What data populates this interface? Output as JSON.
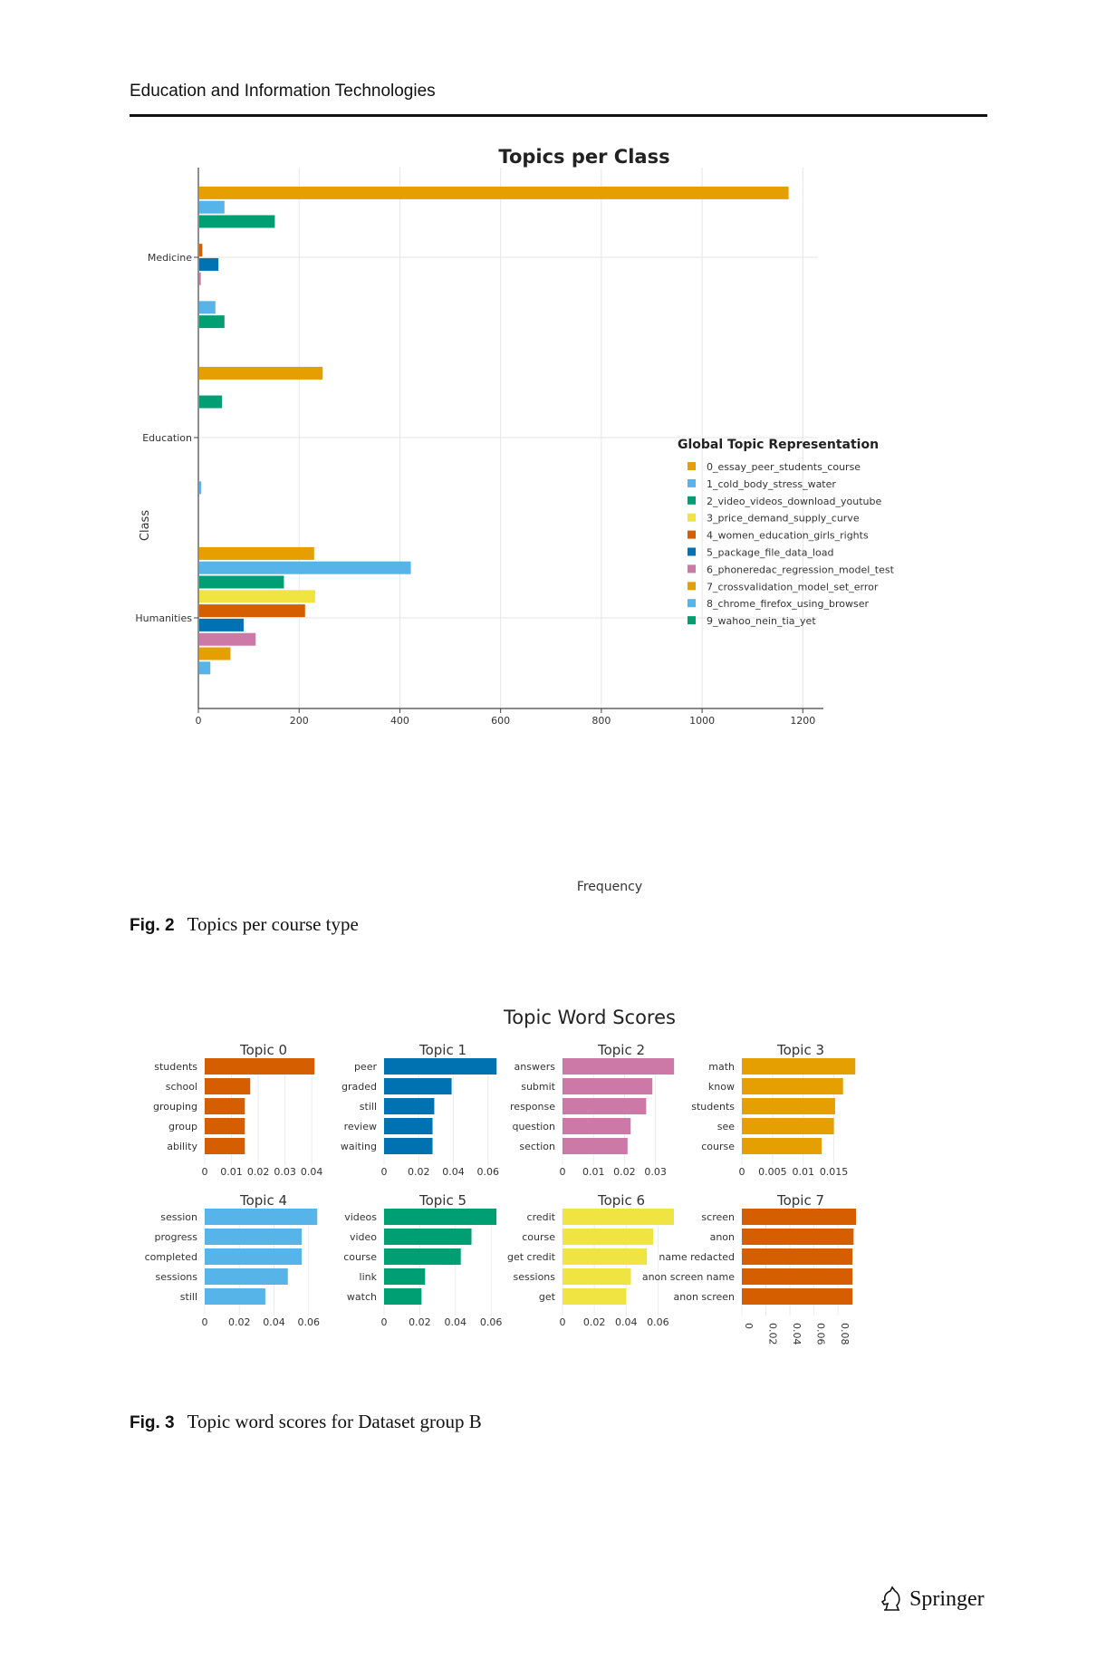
{
  "page": {
    "journal": "Education and Information Technologies",
    "publisher": "Springer"
  },
  "fig2": {
    "caption_label": "Fig. 2",
    "caption_text": "Topics per course type"
  },
  "fig3": {
    "caption_label": "Fig. 3",
    "caption_text": "Topic word scores for Dataset group B"
  },
  "chart_data": [
    {
      "type": "bar",
      "orientation": "horizontal",
      "title": "Topics per Class",
      "xlabel": "Frequency",
      "ylabel": "Class",
      "xlim": [
        0,
        1230
      ],
      "xticks": [
        0,
        200,
        400,
        600,
        800,
        1000,
        1200
      ],
      "categories": [
        "Medicine",
        "Education",
        "Humanities"
      ],
      "legend_title": "Global Topic Representation",
      "legend_position": "right",
      "grid": true,
      "series": [
        {
          "name": "0_essay_peer_students_course",
          "color": "#E69F00",
          "values": [
            1170,
            245,
            228
          ]
        },
        {
          "name": "1_cold_body_stress_water",
          "color": "#56B4E9",
          "values": [
            50,
            0,
            420
          ]
        },
        {
          "name": "2_video_videos_download_youtube",
          "color": "#009E73",
          "values": [
            150,
            45,
            168
          ]
        },
        {
          "name": "3_price_demand_supply_curve",
          "color": "#F0E442",
          "values": [
            0,
            0,
            230
          ]
        },
        {
          "name": "4_women_education_girls_rights",
          "color": "#D55E00",
          "values": [
            6,
            0,
            210
          ]
        },
        {
          "name": "5_package_file_data_load",
          "color": "#0072B2",
          "values": [
            38,
            0,
            88
          ]
        },
        {
          "name": "6_phoneredac_regression_model_test",
          "color": "#CC79A7",
          "values": [
            3,
            0,
            112
          ]
        },
        {
          "name": "7_crossvalidation_model_set_error",
          "color": "#E69F00",
          "values": [
            0,
            0,
            62
          ]
        },
        {
          "name": "8_chrome_firefox_using_browser",
          "color": "#56B4E9",
          "values": [
            32,
            4,
            22
          ]
        },
        {
          "name": "9_wahoo_nein_tia_yet",
          "color": "#009E73",
          "values": [
            50,
            0,
            0
          ]
        }
      ]
    },
    {
      "type": "bar",
      "orientation": "horizontal",
      "title": "Topic Word Scores",
      "grid": true,
      "subplots": [
        {
          "title": "Topic 0",
          "color": "#D55E00",
          "words": [
            "students",
            "school",
            "grouping",
            "group",
            "ability"
          ],
          "values": [
            0.041,
            0.017,
            0.015,
            0.015,
            0.015
          ],
          "xmax": 0.044,
          "xticks": [
            0,
            0.01,
            0.02,
            0.03,
            0.04
          ],
          "xtick_labels": [
            "0",
            "0.01",
            "0.02",
            "0.03",
            "0.04"
          ]
        },
        {
          "title": "Topic 1",
          "color": "#0072B2",
          "words": [
            "peer",
            "graded",
            "still",
            "review",
            "waiting"
          ],
          "values": [
            0.065,
            0.039,
            0.029,
            0.028,
            0.028
          ],
          "xmax": 0.068,
          "xticks": [
            0,
            0.02,
            0.04,
            0.06
          ],
          "xtick_labels": [
            "0",
            "0.02",
            "0.04",
            "0.06"
          ]
        },
        {
          "title": "Topic 2",
          "color": "#CC79A7",
          "words": [
            "answers",
            "submit",
            "response",
            "question",
            "section"
          ],
          "values": [
            0.036,
            0.029,
            0.027,
            0.022,
            0.021
          ],
          "xmax": 0.038,
          "xticks": [
            0,
            0.01,
            0.02,
            0.03
          ],
          "xtick_labels": [
            "0",
            "0.01",
            "0.02",
            "0.03"
          ]
        },
        {
          "title": "Topic 3",
          "color": "#E69F00",
          "words": [
            "math",
            "know",
            "students",
            "see",
            "course"
          ],
          "values": [
            0.0185,
            0.0165,
            0.0152,
            0.015,
            0.013
          ],
          "xmax": 0.0192,
          "xticks": [
            0,
            0.005,
            0.01,
            0.015
          ],
          "xtick_labels": [
            "0",
            "0.005",
            "0.01",
            "0.015"
          ]
        },
        {
          "title": "Topic 4",
          "color": "#56B4E9",
          "words": [
            "session",
            "progress",
            "completed",
            "sessions",
            "still"
          ],
          "values": [
            0.065,
            0.056,
            0.056,
            0.048,
            0.035
          ],
          "xmax": 0.068,
          "xticks": [
            0,
            0.02,
            0.04,
            0.06
          ],
          "xtick_labels": [
            "0",
            "0.02",
            "0.04",
            "0.06"
          ]
        },
        {
          "title": "Topic 5",
          "color": "#009E73",
          "words": [
            "videos",
            "video",
            "course",
            "link",
            "watch"
          ],
          "values": [
            0.063,
            0.049,
            0.043,
            0.023,
            0.021
          ],
          "xmax": 0.066,
          "xticks": [
            0,
            0.02,
            0.04,
            0.06
          ],
          "xtick_labels": [
            "0",
            "0.02",
            "0.04",
            "0.06"
          ]
        },
        {
          "title": "Topic 6",
          "color": "#F0E442",
          "words": [
            "credit",
            "course",
            "get credit",
            "sessions",
            "get"
          ],
          "values": [
            0.07,
            0.057,
            0.053,
            0.043,
            0.04
          ],
          "xmax": 0.074,
          "xticks": [
            0,
            0.02,
            0.04,
            0.06
          ],
          "xtick_labels": [
            "0",
            "0.02",
            "0.04",
            "0.06"
          ]
        },
        {
          "title": "Topic 7",
          "color": "#D55E00",
          "words": [
            "screen",
            "anon",
            "name redacted",
            "anon screen name",
            "anon screen"
          ],
          "values": [
            0.095,
            0.093,
            0.092,
            0.092,
            0.092
          ],
          "xmax": 0.098,
          "xticks": [
            0,
            0.02,
            0.04,
            0.06,
            0.08
          ],
          "xtick_labels": [
            "0",
            "0.02",
            "0.04",
            "0.06",
            "0.08"
          ],
          "rotated_ticks": true
        }
      ]
    }
  ]
}
